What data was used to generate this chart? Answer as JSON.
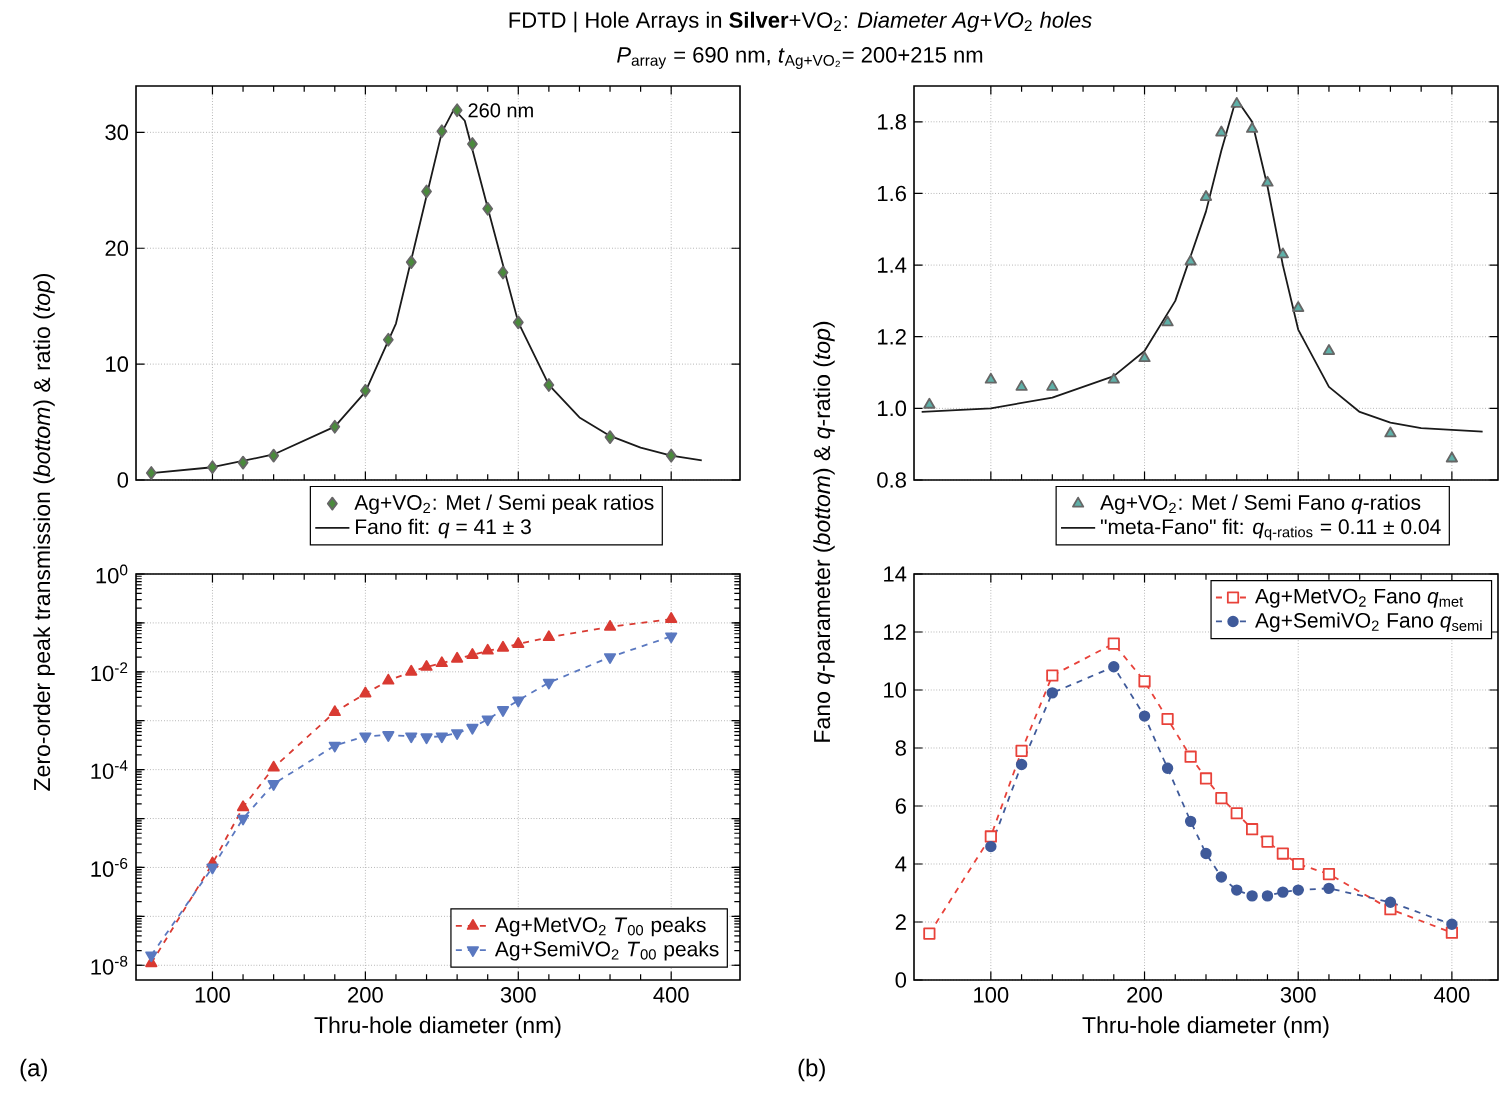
{
  "chart_data": [
    {
      "type": "scatter",
      "title": "FDTD | Hole Arrays in **Silver**+VO$_{2}$: *Diameter Ag+VO*$_{2}$ *holes*",
      "subtitle": "*P*$_{array}$ = 690 nm, *t*$_{Ag+VO₂}$= 200+215 nm",
      "annotations": [
        {
          "text": "260 nm",
          "x": 260,
          "y": 31.9
        }
      ],
      "x": [
        60,
        100,
        120,
        140,
        180,
        200,
        215,
        230,
        240,
        250,
        260,
        270,
        280,
        290,
        300,
        320,
        360,
        400
      ],
      "series": [
        {
          "name": "Ag+VO$_{2}$: Met / Semi peak ratios",
          "color": "#4a8a3c",
          "marker": "diamond",
          "values": [
            0.6,
            1.1,
            1.5,
            2.1,
            4.6,
            7.7,
            12.1,
            18.8,
            24.9,
            30.1,
            31.9,
            29.0,
            23.4,
            17.9,
            13.6,
            8.2,
            3.7,
            2.1
          ]
        },
        {
          "name": "Fano fit: *q* = 41 ± 3",
          "type": "line",
          "color": "#1a1a1a",
          "marker": "none",
          "line_style": "solid",
          "x": [
            60,
            100,
            140,
            180,
            200,
            220,
            240,
            250,
            258,
            265,
            280,
            300,
            320,
            340,
            360,
            380,
            400,
            420
          ],
          "values": [
            0.6,
            1.1,
            2.2,
            4.6,
            7.6,
            13.5,
            24.5,
            30.0,
            32.0,
            31.0,
            23.5,
            13.6,
            8.2,
            5.4,
            3.8,
            2.8,
            2.1,
            1.7
          ]
        }
      ],
      "xlim": [
        50,
        445
      ],
      "ylim": [
        0,
        34
      ],
      "xticks": [
        100,
        200,
        300,
        400
      ],
      "yticks": [
        0,
        10,
        20,
        30
      ],
      "tick_labels": "y",
      "grid": true,
      "legend": "bottom"
    },
    {
      "type": "line",
      "xlabel": "Thru-hole diameter (nm)",
      "ylabel": "Zero-order peak transmission (*bottom*) & ratio (*top*)",
      "annotations": [
        "(a)"
      ],
      "log": "y",
      "x": [
        60,
        100,
        120,
        140,
        180,
        200,
        215,
        230,
        240,
        250,
        260,
        270,
        280,
        290,
        300,
        320,
        360,
        400
      ],
      "series": [
        {
          "name": "Ag+MetVO$_{2}$ *T*$_{00}$ peaks",
          "color": "#d93a32",
          "marker": "triangle",
          "line_style": "dashed",
          "values": [
            1.1e-08,
            1.2e-06,
            1.7e-05,
            0.00011,
            0.0015,
            0.0036,
            0.0066,
            0.01,
            0.0126,
            0.015,
            0.0185,
            0.022,
            0.027,
            0.031,
            0.037,
            0.051,
            0.083,
            0.12
          ]
        },
        {
          "name": "Ag+SemiVO$_{2}$ *T*$_{00}$ peaks",
          "color": "#5a78c0",
          "marker": "triangle-down",
          "line_style": "dashed",
          "values": [
            1.6e-08,
            1e-06,
            1e-05,
            5.1e-05,
            0.00031,
            0.00048,
            0.00051,
            0.00048,
            0.00046,
            0.00048,
            0.00056,
            0.00072,
            0.00107,
            0.00166,
            0.0026,
            0.006,
            0.02,
            0.053
          ]
        }
      ],
      "xlim": [
        50,
        445
      ],
      "ylim": [
        5e-09,
        1
      ],
      "xticks": [
        100,
        200,
        300,
        400
      ],
      "yticks": [
        {
          "value": 1e-08,
          "label": "10$^{-8}$"
        },
        {
          "value": 1e-07,
          "label": null
        },
        {
          "value": 1e-06,
          "label": "10$^{-6}$"
        },
        {
          "value": 1e-05,
          "label": null
        },
        {
          "value": 0.0001,
          "label": "10$^{-4}$"
        },
        {
          "value": 0.001,
          "label": null
        },
        {
          "value": 0.01,
          "label": "10$^{-2}$"
        },
        {
          "value": 0.1,
          "label": null
        },
        {
          "value": 1,
          "label": "10$^{0}$"
        }
      ],
      "grid": true,
      "legend": "bottom right"
    },
    {
      "type": "scatter",
      "x": [
        60,
        100,
        120,
        140,
        180,
        200,
        215,
        230,
        240,
        250,
        260,
        270,
        280,
        290,
        300,
        320,
        360,
        400
      ],
      "series": [
        {
          "name": "Ag+VO$_{2}$: Met / Semi Fano *q*-ratios",
          "color": "#5fb0a8",
          "marker": "triangle",
          "values": [
            1.01,
            1.08,
            1.06,
            1.06,
            1.08,
            1.14,
            1.24,
            1.41,
            1.59,
            1.77,
            1.85,
            1.78,
            1.63,
            1.43,
            1.28,
            1.16,
            0.93,
            0.86
          ]
        },
        {
          "name": "\"meta-Fano\" fit: *q*$_{q-ratios}$ = 0.11 ± 0.04",
          "type": "line",
          "color": "#1a1a1a",
          "marker": "none",
          "line_style": "solid",
          "x": [
            55,
            100,
            140,
            180,
            200,
            220,
            240,
            250,
            258,
            262,
            270,
            280,
            290,
            300,
            320,
            340,
            360,
            380,
            400,
            420
          ],
          "values": [
            0.99,
            1.0,
            1.03,
            1.09,
            1.16,
            1.3,
            1.55,
            1.72,
            1.84,
            1.85,
            1.8,
            1.62,
            1.4,
            1.22,
            1.06,
            0.99,
            0.96,
            0.945,
            0.94,
            0.935
          ]
        }
      ],
      "xlim": [
        50,
        430
      ],
      "ylim": [
        0.8,
        1.9
      ],
      "xticks": [
        100,
        200,
        300,
        400
      ],
      "yticks": [
        0.8,
        {
          "value": 1.0,
          "label": "1.0"
        },
        1.2,
        1.4,
        1.6,
        1.8
      ],
      "tick_labels": "y",
      "grid": true,
      "legend": "bottom"
    },
    {
      "type": "line",
      "xlabel": "Thru-hole diameter (nm)",
      "ylabel": "Fano *q*-parameter (*bottom*) & *q*-ratio (*top*)",
      "annotations": [
        "(b)"
      ],
      "x": [
        60,
        100,
        120,
        140,
        180,
        200,
        215,
        230,
        240,
        250,
        260,
        270,
        280,
        290,
        300,
        320,
        360,
        400
      ],
      "series": [
        {
          "name": "Ag+MetVO$_{2}$ Fano *q*$_{met}$",
          "color": "#e8423a",
          "marker": "square",
          "line_style": "dashed",
          "values": [
            1.6,
            4.95,
            7.9,
            10.5,
            11.6,
            10.3,
            9.0,
            7.7,
            6.95,
            6.27,
            5.75,
            5.2,
            4.77,
            4.36,
            4.0,
            3.65,
            2.44,
            1.63
          ]
        },
        {
          "name": "Ag+SemiVO$_{2}$ Fano *q*$_{semi}$",
          "color": "#3f5a9a",
          "marker": "circle",
          "line_style": "dashed",
          "values": [
            null,
            4.6,
            7.43,
            9.9,
            10.8,
            9.1,
            7.3,
            5.47,
            4.36,
            3.55,
            3.1,
            2.9,
            2.9,
            3.03,
            3.1,
            3.16,
            2.68,
            1.92
          ]
        }
      ],
      "xlim": [
        50,
        430
      ],
      "ylim": [
        0,
        14
      ],
      "xticks": [
        100,
        200,
        300,
        400
      ],
      "yticks": [
        0,
        2,
        4,
        6,
        8,
        10,
        12,
        14
      ],
      "grid": true,
      "legend": "top right"
    }
  ]
}
